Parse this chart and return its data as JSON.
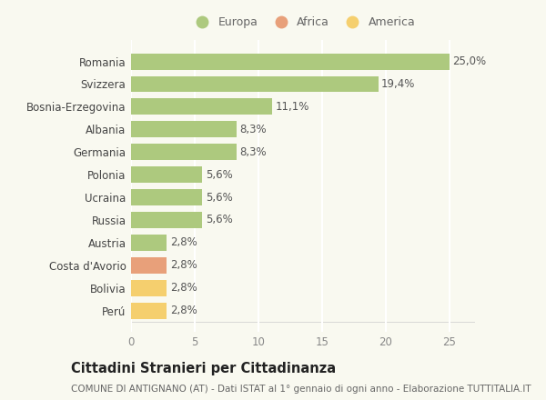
{
  "categories": [
    "Romania",
    "Svizzera",
    "Bosnia-Erzegovina",
    "Albania",
    "Germania",
    "Polonia",
    "Ucraina",
    "Russia",
    "Austria",
    "Costa d'Avorio",
    "Bolivia",
    "Perú"
  ],
  "values": [
    25.0,
    19.4,
    11.1,
    8.3,
    8.3,
    5.6,
    5.6,
    5.6,
    2.8,
    2.8,
    2.8,
    2.8
  ],
  "labels": [
    "25,0%",
    "19,4%",
    "11,1%",
    "8,3%",
    "8,3%",
    "5,6%",
    "5,6%",
    "5,6%",
    "2,8%",
    "2,8%",
    "2,8%",
    "2,8%"
  ],
  "continents": [
    "Europa",
    "Europa",
    "Europa",
    "Europa",
    "Europa",
    "Europa",
    "Europa",
    "Europa",
    "Europa",
    "Africa",
    "America",
    "America"
  ],
  "colors": {
    "Europa": "#adc97e",
    "Africa": "#e8a07a",
    "America": "#f5cf6e"
  },
  "xlim": [
    0,
    27
  ],
  "xticks": [
    0,
    5,
    10,
    15,
    20,
    25
  ],
  "title": "Cittadini Stranieri per Cittadinanza",
  "subtitle": "COMUNE DI ANTIGNANO (AT) - Dati ISTAT al 1° gennaio di ogni anno - Elaborazione TUTTITALIA.IT",
  "background_color": "#f9f9f0",
  "grid_color": "#ffffff",
  "bar_height": 0.72,
  "label_fontsize": 8.5,
  "tick_fontsize": 8.5,
  "title_fontsize": 10.5,
  "subtitle_fontsize": 7.5,
  "legend_order": [
    "Europa",
    "Africa",
    "America"
  ]
}
